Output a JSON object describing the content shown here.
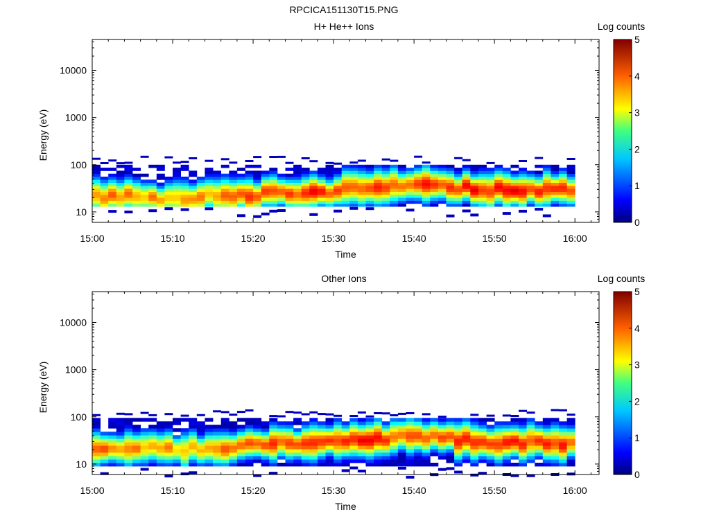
{
  "figure_title": "RPCICA151130T15.PNG",
  "chart_data": [
    {
      "type": "heatmap",
      "title": "H+ He++ Ions",
      "xlabel": "Time",
      "ylabel": "Energy (eV)",
      "y_scale": "log",
      "ylim": [
        6,
        45000
      ],
      "xlim": [
        "15:00",
        "16:03"
      ],
      "x_ticks": [
        "15:00",
        "15:10",
        "15:20",
        "15:30",
        "15:40",
        "15:50",
        "16:00"
      ],
      "y_ticks": [
        "10",
        "100",
        "1000",
        "10000"
      ],
      "colorbar": {
        "label": "Log counts",
        "range": [
          0,
          5
        ],
        "ticks": [
          "0",
          "1",
          "2",
          "3",
          "4",
          "5"
        ]
      },
      "time_start": "15:00",
      "time_end": "16:00",
      "band_low_eV": 13,
      "band_high_eV": 100,
      "peak_energy_eV_by_10min": [
        22,
        20,
        24,
        28,
        38,
        30,
        28
      ],
      "peak_log_counts_by_10min": [
        3.8,
        3.5,
        4.0,
        4.2,
        4.0,
        4.3,
        4.0
      ]
    },
    {
      "type": "heatmap",
      "title": "Other Ions",
      "xlabel": "Time",
      "ylabel": "Energy (eV)",
      "y_scale": "log",
      "ylim": [
        6,
        45000
      ],
      "xlim": [
        "15:00",
        "16:03"
      ],
      "x_ticks": [
        "15:00",
        "15:10",
        "15:20",
        "15:30",
        "15:40",
        "15:50",
        "16:00"
      ],
      "y_ticks": [
        "10",
        "100",
        "1000",
        "10000"
      ],
      "colorbar": {
        "label": "Log counts",
        "range": [
          0,
          5
        ],
        "ticks": [
          "0",
          "1",
          "2",
          "3",
          "4",
          "5"
        ]
      },
      "time_start": "15:00",
      "time_end": "16:00",
      "band_low_eV": 9,
      "band_high_eV": 95,
      "peak_energy_eV_by_10min": [
        24,
        20,
        26,
        30,
        38,
        30,
        28
      ],
      "peak_log_counts_by_10min": [
        3.8,
        3.5,
        4.0,
        4.3,
        4.0,
        4.3,
        4.0
      ]
    }
  ]
}
